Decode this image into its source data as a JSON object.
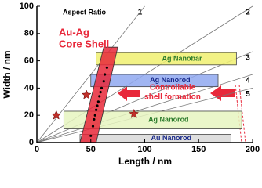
{
  "chart_data": {
    "type": "annotated",
    "xlabel": "Length / nm",
    "ylabel": "Width / nm",
    "xlim": [
      0,
      200
    ],
    "ylim": [
      0,
      100
    ],
    "xticks": [
      0,
      50,
      100,
      150,
      200
    ],
    "yticks": [
      0,
      20,
      40,
      60,
      80,
      100
    ],
    "aspect_ratio_title": "Aspect Ratio",
    "aspect_ratios": [
      1,
      2,
      3,
      4,
      5
    ],
    "regions": [
      {
        "name": "Au Nanorod",
        "color": "#d8d8d8",
        "x": [
          40,
          180
        ],
        "y": [
          0,
          6
        ]
      },
      {
        "name": "Ag Nanorod",
        "color": "#e6f5c0",
        "x": [
          25,
          190
        ],
        "y": [
          10,
          23
        ]
      },
      {
        "name": "Ag Nanorod",
        "color": "#8fa8f0",
        "x": [
          50,
          168
        ],
        "y": [
          41,
          50
        ]
      },
      {
        "name": "Ag Nanobar",
        "color": "#f0f070",
        "x": [
          55,
          185
        ],
        "y": [
          57,
          66
        ]
      }
    ],
    "core_shell": {
      "label": [
        "Au-Ag",
        "Core Shell"
      ],
      "color": "#e8283a",
      "x": [
        40,
        55,
        75,
        62
      ],
      "y": [
        0,
        0,
        70,
        70
      ]
    },
    "points": {
      "x": [
        50,
        52,
        53,
        54,
        55,
        56,
        57,
        58,
        59,
        60,
        62,
        63,
        65
      ],
      "y": [
        5,
        12,
        17,
        20,
        24,
        27,
        30,
        34,
        37,
        40,
        45,
        50,
        55
      ]
    },
    "stars": {
      "x": [
        18,
        46,
        90
      ],
      "y": [
        20,
        35,
        21
      ]
    },
    "annotation": [
      "Controllable",
      "shell formation"
    ]
  }
}
